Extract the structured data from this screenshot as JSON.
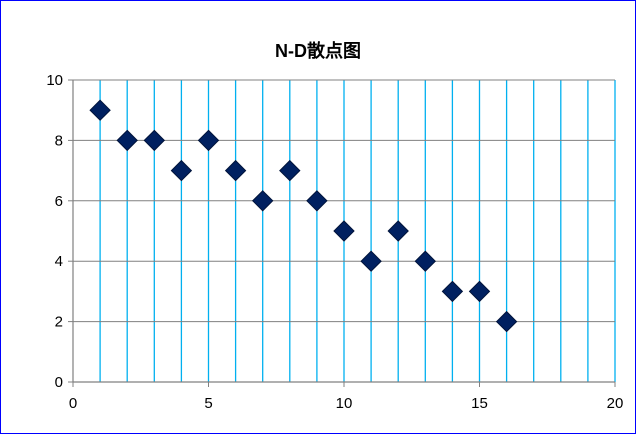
{
  "chart_data": {
    "type": "scatter",
    "title": "N-D散点图",
    "xlabel": "",
    "ylabel": "",
    "xlim": [
      0,
      20
    ],
    "ylim": [
      0,
      10
    ],
    "xticks": [
      0,
      5,
      10,
      15,
      20
    ],
    "yticks": [
      0,
      2,
      4,
      6,
      8,
      10
    ],
    "vertical_grid_step": 1,
    "horizontal_grid_step": 2,
    "grid": true,
    "legend": "none",
    "marker": "diamond",
    "series": [
      {
        "x": [
          1,
          2,
          3,
          4,
          5,
          6,
          7,
          8,
          9,
          10,
          11,
          12,
          13,
          14,
          15,
          16
        ],
        "y": [
          9,
          8,
          8,
          7,
          8,
          7,
          6,
          7,
          6,
          5,
          4,
          5,
          4,
          3,
          3,
          2
        ]
      }
    ]
  },
  "colors": {
    "marker_fill": "#002060",
    "marker_edge": "#00133a",
    "vertical_grid": "#00b0f0",
    "horizontal_grid": "#808080",
    "axis": "#808080",
    "frame_border": "#0000ff"
  }
}
